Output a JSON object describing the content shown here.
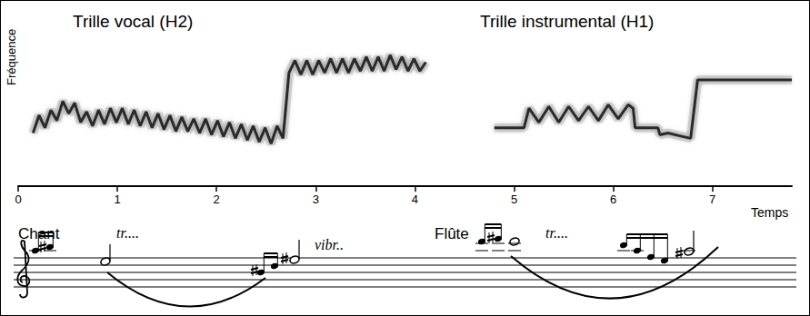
{
  "chart_data": {
    "type": "line",
    "x_label": "Temps",
    "y_label": "Fréquence",
    "xlim": [
      0,
      7.8
    ],
    "xticks": [
      0,
      1,
      2,
      3,
      4,
      5,
      6,
      7
    ],
    "ylim": [
      0,
      100
    ],
    "tick_labels": "x",
    "grid": false,
    "series": [
      {
        "name": "Trille vocal (H2)",
        "color": "#2b2b2b",
        "x": [
          0.15,
          0.21,
          0.27,
          0.33,
          0.39,
          0.45,
          0.51,
          0.57,
          0.63,
          0.69,
          0.75,
          0.81,
          0.87,
          0.93,
          0.99,
          1.05,
          1.11,
          1.17,
          1.23,
          1.29,
          1.35,
          1.41,
          1.47,
          1.53,
          1.59,
          1.65,
          1.71,
          1.77,
          1.83,
          1.89,
          1.95,
          2.01,
          2.07,
          2.13,
          2.19,
          2.25,
          2.31,
          2.37,
          2.43,
          2.49,
          2.55,
          2.61,
          2.67,
          2.73,
          2.79,
          2.85,
          2.91,
          2.97,
          3.03,
          3.09,
          3.15,
          3.21,
          3.27,
          3.33,
          3.39,
          3.45,
          3.51,
          3.57,
          3.63,
          3.69,
          3.75,
          3.81,
          3.87,
          3.93,
          3.99,
          4.05,
          4.11
        ],
        "values": [
          30,
          40,
          33,
          43,
          37,
          48,
          41,
          47,
          36,
          42,
          34,
          43,
          35,
          44,
          36,
          44,
          35,
          43,
          34,
          42,
          33,
          41,
          32,
          40,
          31,
          39,
          31,
          38,
          30,
          38,
          29,
          37,
          28,
          36,
          27,
          35,
          26,
          34,
          25,
          33,
          24,
          34,
          27,
          64,
          71,
          63,
          71,
          63,
          71,
          64,
          72,
          64,
          72,
          64,
          72,
          65,
          73,
          65,
          73,
          65,
          74,
          66,
          73,
          65,
          72,
          65,
          70
        ]
      },
      {
        "name": "Trille instrumental (H1)",
        "color": "#2b2b2b",
        "x": [
          4.8,
          5.0,
          5.1,
          5.15,
          5.25,
          5.35,
          5.45,
          5.55,
          5.65,
          5.75,
          5.85,
          5.95,
          6.05,
          6.15,
          6.2,
          6.22,
          6.45,
          6.47,
          6.55,
          6.7,
          6.78,
          6.85,
          7.0,
          7.4,
          7.8
        ],
        "values": [
          33,
          33,
          33,
          44,
          36,
          45,
          36,
          45,
          37,
          45,
          37,
          46,
          38,
          46,
          44,
          33,
          33,
          29,
          30,
          28,
          27,
          60,
          60,
          60,
          60
        ]
      }
    ]
  },
  "notation": {
    "parts": [
      {
        "instrument": "Chant",
        "marks": [
          "tr....",
          "vibr.."
        ]
      },
      {
        "instrument": "Flûte",
        "marks": [
          "tr...."
        ]
      }
    ]
  }
}
